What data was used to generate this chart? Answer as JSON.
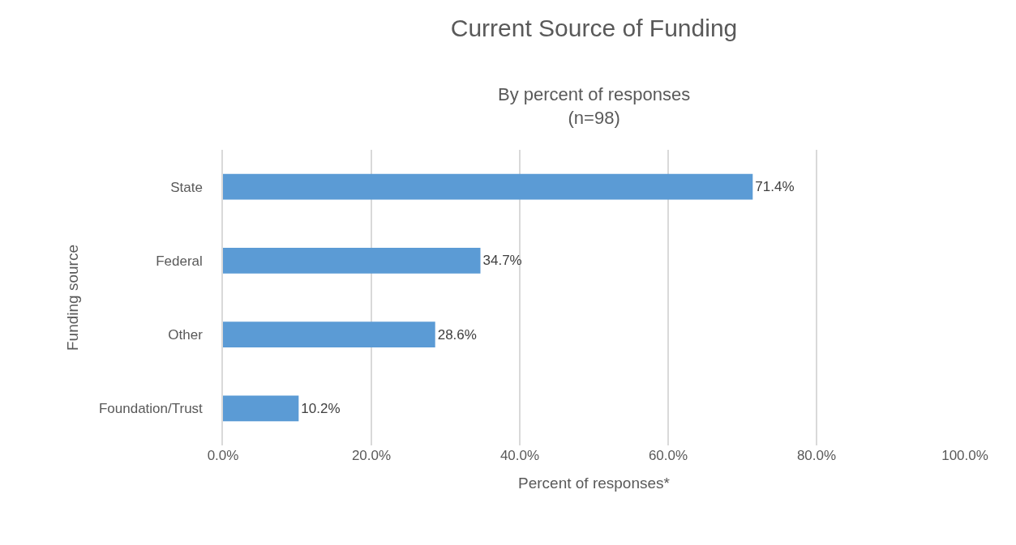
{
  "chart_data": {
    "type": "bar",
    "orientation": "horizontal",
    "title": "Current Source of Funding",
    "subtitle": "By percent of responses\n(n=98)",
    "xlabel": "Percent of responses*",
    "ylabel": "Funding source",
    "categories": [
      "State",
      "Federal",
      "Other",
      "Foundation/Trust"
    ],
    "values": [
      71.4,
      34.7,
      28.6,
      10.2
    ],
    "value_labels": [
      "71.4%",
      "34.7%",
      "28.6%",
      "10.2%"
    ],
    "color": "#5b9bd5",
    "xlim": [
      0,
      100
    ],
    "xticks": [
      {
        "value": 0,
        "label": "0.0%"
      },
      {
        "value": 20,
        "label": "20.0%"
      },
      {
        "value": 40,
        "label": "40.0%"
      },
      {
        "value": 60,
        "label": "60.0%"
      },
      {
        "value": 80,
        "label": "80.0%"
      },
      {
        "value": 100,
        "label": "100.0%"
      }
    ],
    "grid": "x",
    "legend": false
  }
}
